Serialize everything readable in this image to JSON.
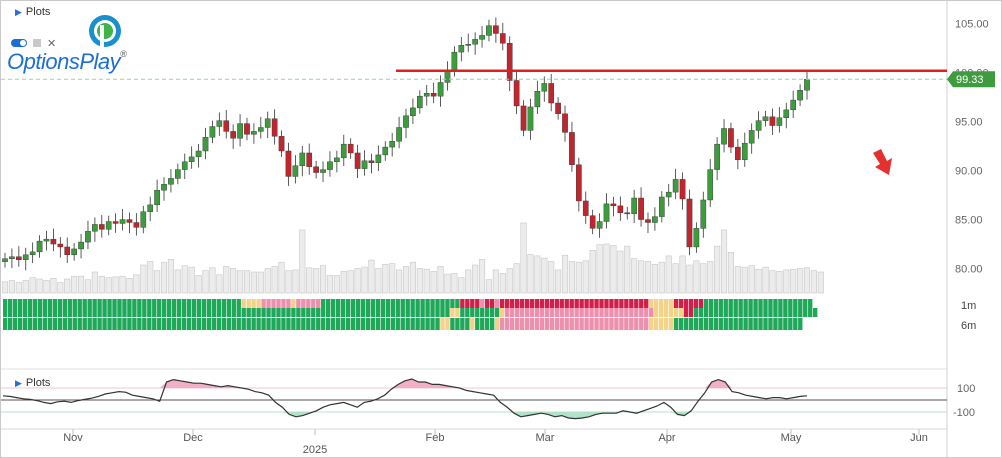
{
  "brand": {
    "name": "OptionsPlay",
    "registered": "®"
  },
  "plots_label_top": "Plots",
  "plots_label_bottom": "Plots",
  "colors": {
    "up": "#3e9b3e",
    "down": "#c0262d",
    "resistance": "#e02020",
    "price_tag": "#3e9b3e",
    "arrow": "#e53030",
    "heat_green": "#1fa85a",
    "heat_yellow": "#f3d38a",
    "heat_pink": "#ee8fae",
    "heat_red": "#d0204a",
    "osc_pos_fill": "#f2a6bd",
    "osc_neg_fill": "#a8dfc4"
  },
  "chart_data": {
    "type": "candlestick",
    "y_axis": {
      "ticks": [
        "105.00",
        "100.00",
        "95.00",
        "90.00",
        "85.00",
        "80.00"
      ],
      "range": [
        77.5,
        106.5
      ]
    },
    "x_axis": {
      "month_labels": [
        "Nov",
        "Dec",
        "2025",
        "Feb",
        "Mar",
        "Apr",
        "May",
        "Jun"
      ]
    },
    "current_price": "99.33",
    "resistance_level": 100.2,
    "price_series": [
      81.0,
      81.2,
      80.9,
      81.4,
      81.7,
      82.8,
      83.0,
      82.5,
      82.2,
      81.4,
      82.0,
      82.7,
      83.8,
      84.5,
      84.0,
      84.8,
      84.6,
      85.0,
      84.7,
      84.2,
      85.8,
      86.5,
      88.0,
      88.6,
      89.2,
      90.1,
      90.9,
      91.4,
      92.0,
      93.4,
      94.5,
      95.1,
      94.0,
      93.3,
      94.8,
      93.7,
      94.0,
      94.4,
      95.3,
      93.5,
      92.0,
      89.4,
      90.5,
      91.8,
      90.4,
      89.8,
      90.1,
      90.9,
      91.3,
      92.7,
      91.8,
      90.2,
      91.0,
      90.8,
      91.6,
      92.4,
      93.0,
      94.4,
      95.6,
      96.4,
      97.6,
      97.9,
      97.6,
      99.0,
      100.2,
      102.1,
      102.8,
      102.9,
      103.4,
      103.8,
      104.8,
      104.0,
      103.0,
      99.2,
      96.6,
      94.1,
      96.5,
      98.1,
      98.9,
      96.9,
      95.8,
      93.9,
      90.6,
      86.9,
      85.4,
      84.1,
      84.8,
      86.6,
      86.4,
      85.7,
      85.6,
      87.2,
      85.0,
      84.7,
      85.3,
      87.3,
      87.8,
      89.1,
      87.1,
      82.2,
      84.1,
      87.0,
      90.1,
      92.7,
      94.3,
      92.4,
      91.1,
      92.8,
      94.1,
      95.1,
      95.5,
      94.6,
      95.4,
      96.2,
      97.2,
      98.2,
      99.33
    ],
    "volume_relative": [
      0.16,
      0.18,
      0.15,
      0.18,
      0.22,
      0.2,
      0.18,
      0.21,
      0.15,
      0.2,
      0.24,
      0.24,
      0.19,
      0.3,
      0.24,
      0.22,
      0.23,
      0.24,
      0.21,
      0.26,
      0.4,
      0.45,
      0.32,
      0.44,
      0.48,
      0.33,
      0.39,
      0.37,
      0.25,
      0.32,
      0.36,
      0.26,
      0.38,
      0.35,
      0.32,
      0.32,
      0.3,
      0.3,
      0.35,
      0.38,
      0.44,
      0.32,
      0.33,
      0.9,
      0.36,
      0.35,
      0.39,
      0.25,
      0.25,
      0.31,
      0.32,
      0.35,
      0.37,
      0.47,
      0.35,
      0.41,
      0.42,
      0.33,
      0.38,
      0.44,
      0.35,
      0.34,
      0.31,
      0.38,
      0.27,
      0.28,
      0.22,
      0.33,
      0.4,
      0.48,
      0.19,
      0.33,
      0.28,
      0.35,
      0.42,
      1.0,
      0.55,
      0.53,
      0.5,
      0.45,
      0.33,
      0.54,
      0.45,
      0.44,
      0.46,
      0.61,
      0.69,
      0.7,
      0.68,
      0.6,
      0.67,
      0.49,
      0.46,
      0.45,
      0.41,
      0.44,
      0.53,
      0.42,
      0.53,
      0.4,
      0.46,
      0.42,
      0.45,
      0.67,
      0.9,
      0.58,
      0.38,
      0.37,
      0.39,
      0.34,
      0.37,
      0.32,
      0.31,
      0.33,
      0.34,
      0.35,
      0.36,
      0.32,
      0.3
    ],
    "heatmap_rows": [
      "1m",
      "6m"
    ],
    "heatmap_1m": "GGGGGGGGGGGGGGGGGGGGGGGGGGGGGGGGGGGGGGGGGGGGGGGGYYYYPPPPPPYPPPPPGGGGGGGGGGGGGGGGGGGGGGGGGGGGRRRRPRRPRRRRRRRRRRRRRRRRRRRRRRRRRRRRRRYYYYYRRRRRRGGGGGGGGGGGGGGGGGGGGGG",
    "heatmap_6m": "GGGGGGGGGGGGGGGGGGGGGGGGGGGGGGGGGGGGGGGGGGGGGGGGGGGGGGGGGGGGGGGGGGGGGGGGGGGGGGGGGGGGGGGGGGYYGGGGGGGGYPPPPPPPPPPPPPPPPPPPPPPPPPPPPPPYYYYYYRRGGGGGGGGGGGGGGGGGGGGGGGGG",
    "heatmap_6m_row2": "GGGGGGGGGGGGGGGGGGGGGGGGGGGGGGGGGGGGGGGGGGGGGGGGGGGGGGGGGGGGGGGGGGGGGGGGGGGGGGGGGGGGGGGGYYGGGGYGGGGYPPPPPPPPPPPPPPPPPPPPPPPPPPPPPPYYYYYGGGGGGGGGGGGGGGGGGGGGGGGGG",
    "oscillator_labels": [
      "100",
      "-100"
    ],
    "oscillator": [
      35,
      30,
      20,
      10,
      5,
      -5,
      -20,
      -30,
      -15,
      -10,
      -20,
      -5,
      5,
      15,
      30,
      50,
      60,
      70,
      65,
      40,
      30,
      20,
      10,
      -10,
      150,
      170,
      160,
      150,
      140,
      140,
      130,
      120,
      110,
      120,
      110,
      100,
      90,
      70,
      60,
      40,
      -20,
      -60,
      -120,
      -140,
      -130,
      -110,
      -90,
      -60,
      -40,
      -30,
      -20,
      -40,
      -60,
      -20,
      -10,
      10,
      40,
      90,
      130,
      160,
      175,
      150,
      150,
      130,
      130,
      120,
      110,
      100,
      80,
      70,
      60,
      50,
      40,
      -20,
      -60,
      -110,
      -140,
      -130,
      -120,
      -110,
      -120,
      -140,
      -130,
      -150,
      -155,
      -150,
      -140,
      -120,
      -110,
      -110,
      -110,
      -90,
      -100,
      -110,
      -90,
      -70,
      -50,
      -20,
      -60,
      -120,
      -130,
      -90,
      -10,
      60,
      150,
      170,
      150,
      70,
      60,
      40,
      30,
      20,
      10,
      20,
      20,
      10,
      20,
      30,
      35
    ]
  }
}
